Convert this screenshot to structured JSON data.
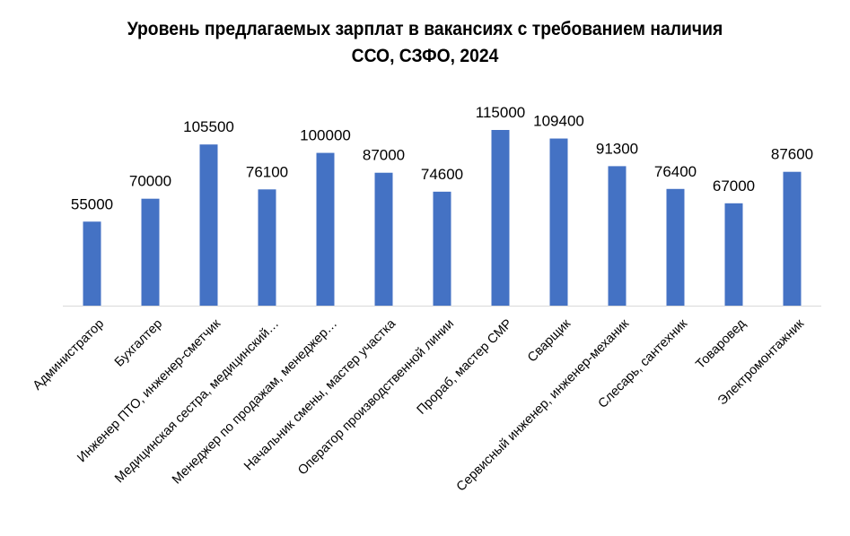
{
  "chart_data": {
    "type": "bar",
    "title_lines": [
      "Уровень предлагаемых зарплат в вакансиях с требованием наличия",
      "ССО, СЗФО, 2024"
    ],
    "categories": [
      "Администратор",
      "Бухгалтер",
      "Инженер ПТО, инженер-сметчик",
      "Медицинская сестра, медицинский…",
      "Менеджер по продажам, менеджер…",
      "Начальник смены, мастер участка",
      "Оператор производственной линии",
      "Прораб, мастер СМР",
      "Сварщик",
      "Сервисный инженер, инженер-механик",
      "Слесарь, сантехник",
      "Товаровед",
      "Электромонтажник"
    ],
    "values": [
      55000,
      70000,
      105500,
      76100,
      100000,
      87000,
      74600,
      115000,
      109400,
      91300,
      76400,
      67000,
      87600
    ],
    "value_labels": [
      "55000",
      "70000",
      "105500",
      "76100",
      "100000",
      "87000",
      "74600",
      "115000",
      "109400",
      "91300",
      "76400",
      "67000",
      "87600"
    ],
    "ylim": [
      0,
      115000
    ],
    "bar_color": "#4472c4",
    "axis_color": "#d9d9d9",
    "grid": false,
    "legend": "none",
    "show_data_labels": true
  }
}
